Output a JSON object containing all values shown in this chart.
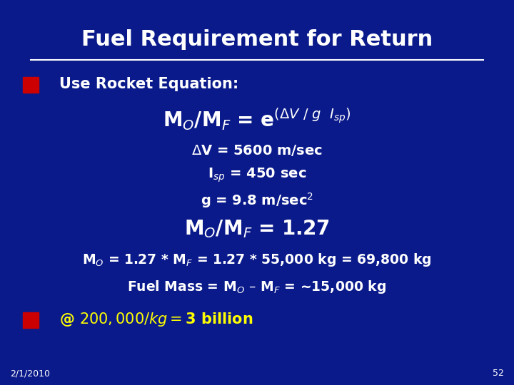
{
  "title": "Fuel Requirement for Return",
  "bg_color": "#0a1a8a",
  "text_color": "#ffffff",
  "yellow_color": "#ffff00",
  "red_square_color": "#cc0000",
  "bullet1": "Use Rocket Equation:",
  "bullet2": "@ $200,000 / kg = $3 billion",
  "date": "2/1/2010",
  "page": "52"
}
